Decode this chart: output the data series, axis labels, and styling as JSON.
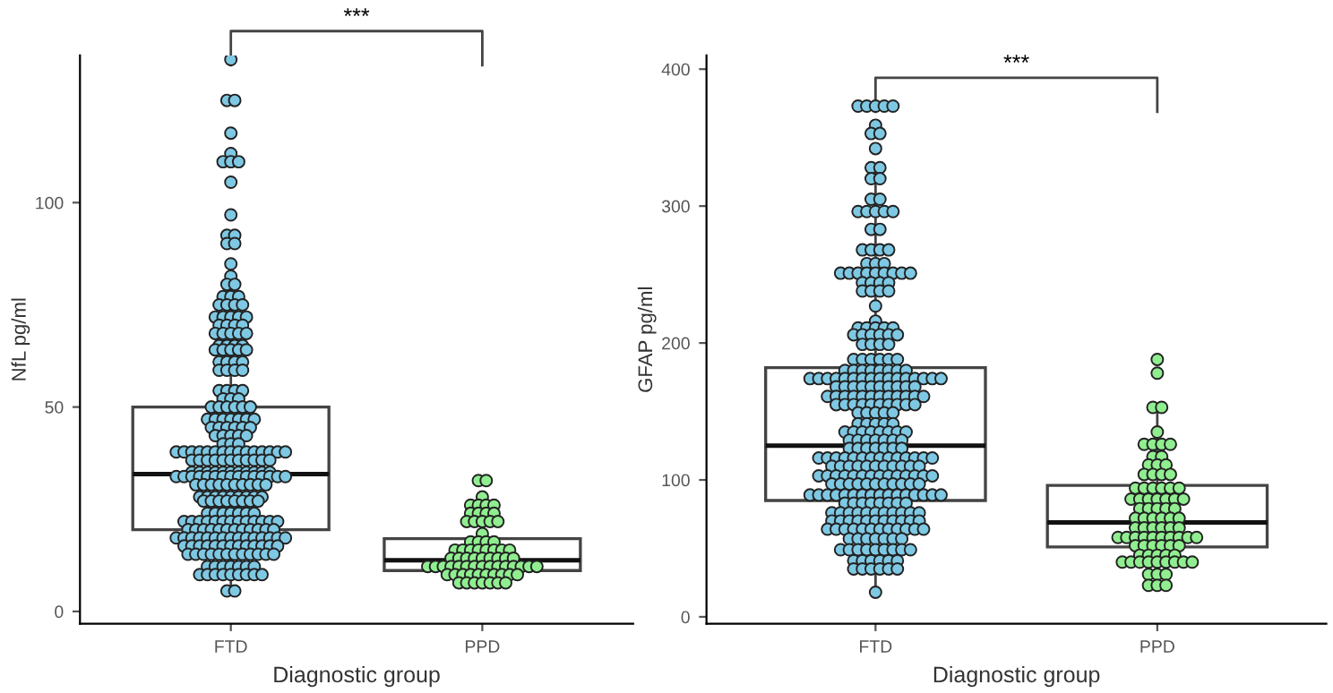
{
  "chart_data": [
    {
      "type": "box",
      "xlabel": "Diagnostic group",
      "ylabel": "NfL pg/ml",
      "categories": [
        "FTD",
        "PPD"
      ],
      "ylim": [
        -3,
        136
      ],
      "yticks": [
        0,
        50,
        100
      ],
      "grid": false,
      "legend": false,
      "annotations": [
        "***"
      ],
      "boxes": [
        {
          "low": 5,
          "q1": 20,
          "median": 33.6,
          "q3": 50,
          "high": 80
        },
        {
          "low": 6.5,
          "q1": 10,
          "median": 12.5,
          "q3": 17.8,
          "high": 28
        }
      ],
      "series": [
        {
          "type": "scatter",
          "color": "#7ec8e3",
          "x": [
            "FTD",
            "FTD",
            "FTD",
            "FTD",
            "FTD",
            "FTD",
            "FTD",
            "FTD",
            "FTD",
            "FTD",
            "FTD",
            "FTD",
            "FTD",
            "FTD",
            "FTD",
            "FTD",
            "FTD",
            "FTD",
            "FTD",
            "FTD",
            "FTD",
            "FTD",
            "FTD",
            "FTD",
            "FTD",
            "FTD",
            "FTD",
            "FTD",
            "FTD",
            "FTD",
            "FTD",
            "FTD",
            "FTD",
            "FTD",
            "FTD",
            "FTD",
            "FTD",
            "FTD",
            "FTD",
            "FTD",
            "FTD",
            "FTD",
            "FTD",
            "FTD",
            "FTD",
            "FTD",
            "FTD",
            "FTD",
            "FTD",
            "FTD",
            "FTD",
            "FTD",
            "FTD",
            "FTD",
            "FTD",
            "FTD",
            "FTD",
            "FTD",
            "FTD",
            "FTD",
            "FTD",
            "FTD",
            "FTD",
            "FTD",
            "FTD",
            "FTD",
            "FTD",
            "FTD",
            "FTD",
            "FTD",
            "FTD",
            "FTD",
            "FTD",
            "FTD",
            "FTD",
            "FTD",
            "FTD",
            "FTD",
            "FTD",
            "FTD",
            "FTD",
            "FTD",
            "FTD",
            "FTD",
            "FTD",
            "FTD",
            "FTD",
            "FTD",
            "FTD",
            "FTD",
            "FTD",
            "FTD",
            "FTD",
            "FTD",
            "FTD",
            "FTD",
            "FTD",
            "FTD",
            "FTD",
            "FTD",
            "FTD",
            "FTD",
            "FTD",
            "FTD",
            "FTD",
            "FTD",
            "FTD",
            "FTD",
            "FTD",
            "FTD",
            "FTD",
            "FTD",
            "FTD",
            "FTD",
            "FTD",
            "FTD",
            "FTD",
            "FTD",
            "FTD",
            "FTD",
            "FTD",
            "FTD",
            "FTD",
            "FTD",
            "FTD",
            "FTD",
            "FTD",
            "FTD",
            "FTD",
            "FTD",
            "FTD",
            "FTD",
            "FTD",
            "FTD",
            "FTD",
            "FTD",
            "FTD",
            "FTD",
            "FTD",
            "FTD",
            "FTD",
            "FTD",
            "FTD",
            "FTD",
            "FTD",
            "FTD",
            "FTD",
            "FTD",
            "FTD",
            "FTD",
            "FTD",
            "FTD",
            "FTD",
            "FTD",
            "FTD",
            "FTD",
            "FTD",
            "FTD",
            "FTD",
            "FTD",
            "FTD",
            "FTD",
            "FTD",
            "FTD",
            "FTD",
            "FTD",
            "FTD",
            "FTD",
            "FTD",
            "FTD",
            "FTD",
            "FTD",
            "FTD",
            "FTD",
            "FTD",
            "FTD",
            "FTD",
            "FTD",
            "FTD",
            "FTD",
            "FTD",
            "FTD",
            "FTD",
            "FTD",
            "FTD",
            "FTD",
            "FTD",
            "FTD",
            "FTD",
            "FTD",
            "FTD",
            "FTD",
            "FTD",
            "FTD",
            "FTD",
            "FTD",
            "FTD",
            "FTD",
            "FTD",
            "FTD",
            "FTD",
            "FTD",
            "FTD",
            "FTD",
            "FTD",
            "FTD",
            "FTD",
            "FTD",
            "FTD",
            "FTD",
            "FTD",
            "FTD",
            "FTD",
            "FTD",
            "FTD",
            "FTD",
            "FTD",
            "FTD",
            "FTD",
            "FTD",
            "FTD",
            "FTD",
            "FTD",
            "FTD",
            "FTD",
            "FTD",
            "FTD",
            "FTD",
            "FTD",
            "FTD",
            "FTD",
            "FTD",
            "FTD",
            "FTD",
            "FTD",
            "FTD",
            "FTD",
            "FTD",
            "FTD",
            "FTD",
            "FTD",
            "FTD",
            "FTD",
            "FTD",
            "FTD",
            "FTD",
            "FTD",
            "FTD",
            "FTD",
            "FTD",
            "FTD",
            "FTD",
            "FTD",
            "FTD",
            "FTD",
            "FTD",
            "FTD",
            "FTD",
            "FTD"
          ],
          "values": [
            135,
            125,
            125,
            117,
            112,
            110,
            110,
            110,
            105,
            97,
            92,
            92,
            90,
            90,
            85,
            82,
            80,
            80,
            77,
            77,
            77,
            75,
            75,
            75,
            75,
            72,
            72,
            72,
            72,
            72,
            70,
            70,
            70,
            70,
            68,
            68,
            68,
            68,
            68,
            65,
            65,
            65,
            65,
            64,
            64,
            64,
            64,
            64,
            61,
            61,
            61,
            61,
            59,
            59,
            59,
            59,
            54,
            54,
            54,
            54,
            52,
            52,
            52,
            50,
            50,
            50,
            50,
            50,
            50,
            47,
            47,
            47,
            47,
            47,
            47,
            47,
            45,
            45,
            45,
            45,
            45,
            45,
            43,
            43,
            43,
            43,
            43,
            41,
            41,
            41,
            39,
            39,
            39,
            39,
            39,
            39,
            39,
            39,
            39,
            39,
            39,
            39,
            39,
            39,
            39,
            37,
            37,
            37,
            37,
            37,
            37,
            37,
            37,
            37,
            37,
            37,
            34,
            34,
            34,
            34,
            34,
            34,
            34,
            34,
            34,
            34,
            34,
            33,
            33,
            33,
            33,
            33,
            33,
            33,
            33,
            33,
            33,
            33,
            33,
            33,
            33,
            33,
            31,
            31,
            31,
            31,
            31,
            31,
            31,
            31,
            31,
            31,
            28,
            28,
            28,
            28,
            28,
            28,
            28,
            28,
            28,
            27,
            27,
            27,
            27,
            27,
            27,
            27,
            27,
            24,
            24,
            24,
            24,
            24,
            24,
            24,
            22,
            22,
            22,
            22,
            22,
            22,
            22,
            22,
            22,
            22,
            22,
            22,
            22,
            20,
            20,
            20,
            20,
            20,
            20,
            20,
            20,
            20,
            20,
            20,
            20,
            18,
            18,
            18,
            18,
            18,
            18,
            18,
            18,
            18,
            18,
            18,
            18,
            18,
            18,
            18,
            16,
            16,
            16,
            16,
            16,
            16,
            16,
            16,
            16,
            16,
            16,
            16,
            16,
            14,
            14,
            14,
            14,
            14,
            14,
            14,
            14,
            14,
            14,
            14,
            14,
            11,
            11,
            11,
            11,
            11,
            11,
            11,
            9,
            9,
            9,
            9,
            9,
            9,
            9,
            9,
            9,
            5,
            5
          ]
        },
        {
          "type": "scatter",
          "color": "#90ee90",
          "x": [
            "PPD",
            "PPD",
            "PPD",
            "PPD",
            "PPD",
            "PPD",
            "PPD",
            "PPD",
            "PPD",
            "PPD",
            "PPD",
            "PPD",
            "PPD",
            "PPD",
            "PPD",
            "PPD",
            "PPD",
            "PPD",
            "PPD",
            "PPD",
            "PPD",
            "PPD",
            "PPD",
            "PPD",
            "PPD",
            "PPD",
            "PPD",
            "PPD",
            "PPD",
            "PPD",
            "PPD",
            "PPD",
            "PPD",
            "PPD",
            "PPD",
            "PPD",
            "PPD",
            "PPD",
            "PPD",
            "PPD",
            "PPD",
            "PPD",
            "PPD",
            "PPD",
            "PPD",
            "PPD",
            "PPD",
            "PPD",
            "PPD",
            "PPD",
            "PPD",
            "PPD",
            "PPD",
            "PPD",
            "PPD",
            "PPD",
            "PPD",
            "PPD",
            "PPD",
            "PPD",
            "PPD",
            "PPD",
            "PPD",
            "PPD",
            "PPD",
            "PPD",
            "PPD",
            "PPD",
            "PPD",
            "PPD"
          ],
          "values": [
            32,
            32,
            28,
            26,
            26,
            26,
            26,
            24,
            24,
            24,
            24,
            22,
            22,
            22,
            22,
            22,
            19,
            17,
            17,
            17,
            17,
            15,
            15,
            15,
            15,
            15,
            15,
            15,
            15,
            13,
            13,
            13,
            13,
            13,
            13,
            13,
            13,
            13,
            11,
            11,
            11,
            11,
            11,
            11,
            11,
            11,
            11,
            11,
            11,
            11,
            11,
            11,
            11,
            9,
            9,
            9,
            9,
            9,
            9,
            9,
            9,
            9,
            9,
            7,
            7,
            7,
            7,
            7,
            7,
            7
          ]
        }
      ]
    },
    {
      "type": "box",
      "xlabel": "Diagnostic group",
      "ylabel": "GFAP pg/ml",
      "categories": [
        "FTD",
        "PPD"
      ],
      "ylim": [
        -5,
        410
      ],
      "yticks": [
        0,
        100,
        200,
        300,
        400
      ],
      "grid": false,
      "legend": false,
      "annotations": [
        "***"
      ],
      "boxes": [
        {
          "low": 18,
          "q1": 85,
          "median": 125,
          "q3": 182,
          "high": 330
        },
        {
          "low": 23,
          "q1": 51,
          "median": 69,
          "q3": 96,
          "high": 153
        }
      ],
      "series": [
        {
          "type": "scatter",
          "color": "#7ec8e3",
          "x": [
            "FTD",
            "FTD",
            "FTD",
            "FTD",
            "FTD",
            "FTD",
            "FTD",
            "FTD",
            "FTD",
            "FTD",
            "FTD",
            "FTD",
            "FTD",
            "FTD",
            "FTD",
            "FTD",
            "FTD",
            "FTD",
            "FTD",
            "FTD",
            "FTD",
            "FTD",
            "FTD",
            "FTD",
            "FTD",
            "FTD",
            "FTD",
            "FTD",
            "FTD",
            "FTD",
            "FTD",
            "FTD",
            "FTD",
            "FTD",
            "FTD",
            "FTD",
            "FTD",
            "FTD",
            "FTD",
            "FTD",
            "FTD",
            "FTD",
            "FTD",
            "FTD",
            "FTD",
            "FTD",
            "FTD",
            "FTD",
            "FTD",
            "FTD",
            "FTD",
            "FTD",
            "FTD",
            "FTD",
            "FTD",
            "FTD",
            "FTD",
            "FTD",
            "FTD",
            "FTD",
            "FTD",
            "FTD",
            "FTD",
            "FTD",
            "FTD",
            "FTD",
            "FTD",
            "FTD",
            "FTD",
            "FTD",
            "FTD",
            "FTD",
            "FTD",
            "FTD",
            "FTD",
            "FTD",
            "FTD",
            "FTD",
            "FTD",
            "FTD",
            "FTD",
            "FTD",
            "FTD",
            "FTD",
            "FTD",
            "FTD",
            "FTD",
            "FTD",
            "FTD",
            "FTD",
            "FTD",
            "FTD",
            "FTD",
            "FTD",
            "FTD",
            "FTD",
            "FTD",
            "FTD",
            "FTD",
            "FTD",
            "FTD",
            "FTD",
            "FTD",
            "FTD",
            "FTD",
            "FTD",
            "FTD",
            "FTD",
            "FTD",
            "FTD",
            "FTD",
            "FTD",
            "FTD",
            "FTD",
            "FTD",
            "FTD",
            "FTD",
            "FTD",
            "FTD",
            "FTD",
            "FTD",
            "FTD",
            "FTD",
            "FTD",
            "FTD",
            "FTD",
            "FTD",
            "FTD",
            "FTD",
            "FTD",
            "FTD",
            "FTD",
            "FTD",
            "FTD",
            "FTD",
            "FTD",
            "FTD",
            "FTD",
            "FTD",
            "FTD",
            "FTD",
            "FTD",
            "FTD",
            "FTD",
            "FTD",
            "FTD",
            "FTD",
            "FTD",
            "FTD",
            "FTD",
            "FTD",
            "FTD",
            "FTD",
            "FTD",
            "FTD",
            "FTD",
            "FTD",
            "FTD",
            "FTD",
            "FTD",
            "FTD",
            "FTD",
            "FTD",
            "FTD",
            "FTD",
            "FTD",
            "FTD",
            "FTD",
            "FTD",
            "FTD",
            "FTD",
            "FTD",
            "FTD",
            "FTD",
            "FTD",
            "FTD",
            "FTD",
            "FTD",
            "FTD",
            "FTD",
            "FTD",
            "FTD",
            "FTD",
            "FTD",
            "FTD",
            "FTD",
            "FTD",
            "FTD",
            "FTD",
            "FTD",
            "FTD",
            "FTD",
            "FTD",
            "FTD",
            "FTD",
            "FTD",
            "FTD",
            "FTD",
            "FTD",
            "FTD",
            "FTD",
            "FTD",
            "FTD",
            "FTD",
            "FTD",
            "FTD",
            "FTD",
            "FTD",
            "FTD",
            "FTD",
            "FTD",
            "FTD",
            "FTD",
            "FTD",
            "FTD",
            "FTD",
            "FTD",
            "FTD",
            "FTD",
            "FTD",
            "FTD",
            "FTD",
            "FTD",
            "FTD",
            "FTD",
            "FTD",
            "FTD",
            "FTD",
            "FTD",
            "FTD",
            "FTD",
            "FTD",
            "FTD",
            "FTD",
            "FTD",
            "FTD",
            "FTD",
            "FTD",
            "FTD",
            "FTD",
            "FTD",
            "FTD",
            "FTD",
            "FTD",
            "FTD",
            "FTD",
            "FTD",
            "FTD",
            "FTD",
            "FTD",
            "FTD",
            "FTD",
            "FTD",
            "FTD",
            "FTD",
            "FTD",
            "FTD",
            "FTD",
            "FTD",
            "FTD",
            "FTD",
            "FTD",
            "FTD",
            "FTD",
            "FTD",
            "FTD",
            "FTD",
            "FTD",
            "FTD",
            "FTD",
            "FTD",
            "FTD",
            "FTD",
            "FTD",
            "FTD",
            "FTD",
            "FTD",
            "FTD",
            "FTD",
            "FTD",
            "FTD",
            "FTD",
            "FTD",
            "FTD",
            "FTD",
            "FTD",
            "FTD",
            "FTD",
            "FTD",
            "FTD",
            "FTD",
            "FTD",
            "FTD",
            "FTD"
          ],
          "values": [
            373,
            373,
            373,
            373,
            373,
            359,
            353,
            353,
            342,
            328,
            328,
            320,
            320,
            305,
            305,
            296,
            296,
            296,
            296,
            296,
            283,
            283,
            268,
            268,
            268,
            268,
            258,
            258,
            258,
            251,
            251,
            251,
            251,
            251,
            251,
            251,
            251,
            251,
            244,
            244,
            244,
            244,
            238,
            238,
            238,
            238,
            227,
            216,
            211,
            211,
            211,
            211,
            211,
            206,
            206,
            206,
            206,
            206,
            206,
            199,
            199,
            199,
            199,
            188,
            188,
            188,
            188,
            188,
            188,
            180,
            180,
            180,
            180,
            180,
            180,
            180,
            180,
            174,
            174,
            174,
            174,
            174,
            174,
            174,
            174,
            174,
            174,
            174,
            174,
            174,
            174,
            174,
            174,
            168,
            168,
            168,
            168,
            168,
            168,
            168,
            168,
            168,
            168,
            161,
            161,
            161,
            161,
            161,
            161,
            161,
            161,
            161,
            161,
            161,
            161,
            155,
            155,
            155,
            155,
            155,
            155,
            155,
            155,
            155,
            155,
            149,
            149,
            149,
            149,
            149,
            141,
            141,
            141,
            141,
            141,
            135,
            135,
            135,
            135,
            135,
            135,
            135,
            135,
            129,
            129,
            129,
            129,
            129,
            129,
            129,
            123,
            123,
            123,
            123,
            123,
            123,
            123,
            116,
            116,
            116,
            116,
            116,
            116,
            116,
            116,
            116,
            116,
            116,
            116,
            116,
            116,
            110,
            110,
            110,
            110,
            110,
            110,
            110,
            110,
            110,
            110,
            110,
            103,
            103,
            103,
            103,
            103,
            103,
            103,
            103,
            103,
            103,
            103,
            103,
            103,
            103,
            97,
            97,
            97,
            97,
            97,
            97,
            97,
            97,
            97,
            97,
            97,
            89,
            89,
            89,
            89,
            89,
            89,
            89,
            89,
            89,
            89,
            89,
            89,
            89,
            89,
            89,
            89,
            83,
            83,
            83,
            83,
            83,
            83,
            83,
            83,
            76,
            76,
            76,
            76,
            76,
            76,
            76,
            76,
            76,
            76,
            76,
            70,
            70,
            70,
            70,
            70,
            70,
            70,
            70,
            70,
            70,
            70,
            64,
            64,
            64,
            64,
            64,
            64,
            64,
            64,
            64,
            64,
            64,
            64,
            57,
            57,
            57,
            57,
            57,
            57,
            57,
            49,
            49,
            49,
            49,
            49,
            49,
            49,
            49,
            49,
            41,
            41,
            41,
            41,
            41,
            41,
            35,
            35,
            35,
            35,
            35,
            35,
            18
          ]
        },
        {
          "type": "scatter",
          "color": "#90ee90",
          "x": [
            "PPD",
            "PPD",
            "PPD",
            "PPD",
            "PPD",
            "PPD",
            "PPD",
            "PPD",
            "PPD",
            "PPD",
            "PPD",
            "PPD",
            "PPD",
            "PPD",
            "PPD",
            "PPD",
            "PPD",
            "PPD",
            "PPD",
            "PPD",
            "PPD",
            "PPD",
            "PPD",
            "PPD",
            "PPD",
            "PPD",
            "PPD",
            "PPD",
            "PPD",
            "PPD",
            "PPD",
            "PPD",
            "PPD",
            "PPD",
            "PPD",
            "PPD",
            "PPD",
            "PPD",
            "PPD",
            "PPD",
            "PPD",
            "PPD",
            "PPD",
            "PPD",
            "PPD",
            "PPD",
            "PPD",
            "PPD",
            "PPD",
            "PPD",
            "PPD",
            "PPD",
            "PPD",
            "PPD",
            "PPD",
            "PPD",
            "PPD",
            "PPD",
            "PPD",
            "PPD",
            "PPD",
            "PPD",
            "PPD",
            "PPD",
            "PPD",
            "PPD",
            "PPD",
            "PPD",
            "PPD",
            "PPD",
            "PPD",
            "PPD",
            "PPD",
            "PPD",
            "PPD",
            "PPD",
            "PPD",
            "PPD",
            "PPD",
            "PPD",
            "PPD",
            "PPD",
            "PPD",
            "PPD"
          ],
          "values": [
            188,
            178,
            153,
            153,
            135,
            126,
            126,
            126,
            126,
            117,
            117,
            111,
            111,
            111,
            104,
            104,
            104,
            104,
            94,
            94,
            94,
            94,
            94,
            94,
            86,
            86,
            86,
            86,
            86,
            86,
            86,
            79,
            79,
            79,
            79,
            79,
            72,
            72,
            72,
            72,
            72,
            72,
            65,
            65,
            65,
            65,
            65,
            65,
            58,
            58,
            58,
            58,
            58,
            58,
            58,
            58,
            58,
            58,
            52,
            52,
            52,
            52,
            52,
            52,
            45,
            45,
            45,
            45,
            45,
            40,
            40,
            40,
            40,
            40,
            40,
            40,
            40,
            40,
            31,
            31,
            31,
            23,
            23,
            23
          ]
        }
      ]
    }
  ]
}
